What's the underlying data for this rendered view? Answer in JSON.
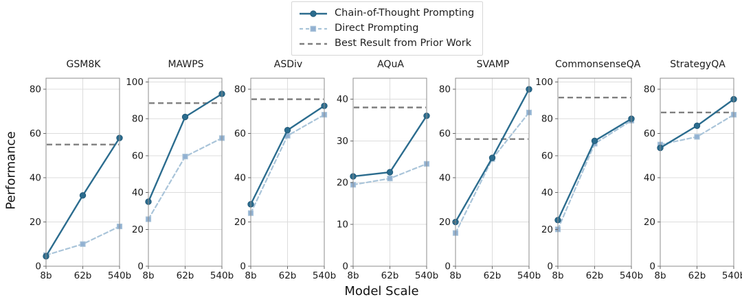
{
  "figure": {
    "xlabel": "Model Scale",
    "ylabel": "Performance"
  },
  "legend": {
    "items": [
      {
        "key": "cot",
        "label": "Chain-of-Thought Prompting"
      },
      {
        "key": "direct",
        "label": "Direct Prompting"
      },
      {
        "key": "prior",
        "label": "Best Result from Prior Work"
      }
    ]
  },
  "colors": {
    "cot": "#2b6c8e",
    "cot_marker_edge": "#235a79",
    "direct": "#a9c4d9",
    "direct_marker": "#8fafd1",
    "prior": "#7f7f7f",
    "grid": "#dcdcdc",
    "spine": "#8c8c8c",
    "tick": "#666666",
    "text": "#1a1a1a"
  },
  "chart_data": [
    {
      "type": "line",
      "title": "GSM8K",
      "categories": [
        "8b",
        "62b",
        "540b"
      ],
      "yticks": [
        0,
        20,
        40,
        60,
        80
      ],
      "ylim": [
        0,
        85
      ],
      "series": [
        {
          "name": "Chain-of-Thought Prompting",
          "values": [
            4.5,
            32,
            58
          ]
        },
        {
          "name": "Direct Prompting",
          "values": [
            5,
            10,
            18
          ]
        }
      ],
      "prior_work": 55
    },
    {
      "type": "line",
      "title": "MAWPS",
      "categories": [
        "8b",
        "62b",
        "540b"
      ],
      "yticks": [
        0,
        20,
        40,
        60,
        80,
        100
      ],
      "ylim": [
        0,
        102
      ],
      "series": [
        {
          "name": "Chain-of-Thought Prompting",
          "values": [
            35,
            81,
            93.5
          ]
        },
        {
          "name": "Direct Prompting",
          "values": [
            25.5,
            59.5,
            69.5
          ]
        }
      ],
      "prior_work": 88.5
    },
    {
      "type": "line",
      "title": "ASDiv",
      "categories": [
        "8b",
        "62b",
        "540b"
      ],
      "yticks": [
        0,
        20,
        40,
        60,
        80
      ],
      "ylim": [
        0,
        85
      ],
      "series": [
        {
          "name": "Chain-of-Thought Prompting",
          "values": [
            28,
            61.5,
            72.5
          ]
        },
        {
          "name": "Direct Prompting",
          "values": [
            24,
            59,
            68.5
          ]
        }
      ],
      "prior_work": 75.5
    },
    {
      "type": "line",
      "title": "AQuA",
      "categories": [
        "8b",
        "62b",
        "540b"
      ],
      "yticks": [
        0,
        10,
        20,
        30,
        40
      ],
      "ylim": [
        0,
        45
      ],
      "series": [
        {
          "name": "Chain-of-Thought Prompting",
          "values": [
            21.5,
            22.5,
            36
          ]
        },
        {
          "name": "Direct Prompting",
          "values": [
            19.5,
            21,
            24.5
          ]
        }
      ],
      "prior_work": 38
    },
    {
      "type": "line",
      "title": "SVAMP",
      "categories": [
        "8b",
        "62b",
        "540b"
      ],
      "yticks": [
        0,
        20,
        40,
        60,
        80
      ],
      "ylim": [
        0,
        85
      ],
      "series": [
        {
          "name": "Chain-of-Thought Prompting",
          "values": [
            20,
            49,
            80
          ]
        },
        {
          "name": "Direct Prompting",
          "values": [
            15,
            48.5,
            69.5
          ]
        }
      ],
      "prior_work": 57.5
    },
    {
      "type": "line",
      "title": "CommonsenseQA",
      "categories": [
        "8b",
        "62b",
        "540b"
      ],
      "yticks": [
        0,
        20,
        40,
        60,
        80,
        100
      ],
      "ylim": [
        0,
        102
      ],
      "series": [
        {
          "name": "Chain-of-Thought Prompting",
          "values": [
            25,
            68,
            80
          ]
        },
        {
          "name": "Direct Prompting",
          "values": [
            20,
            66.5,
            79
          ]
        }
      ],
      "prior_work": 91.5
    },
    {
      "type": "line",
      "title": "StrategyQA",
      "categories": [
        "8b",
        "62b",
        "540b"
      ],
      "yticks": [
        0,
        20,
        40,
        60,
        80
      ],
      "ylim": [
        0,
        85
      ],
      "series": [
        {
          "name": "Chain-of-Thought Prompting",
          "values": [
            53.5,
            63.5,
            75.5
          ]
        },
        {
          "name": "Direct Prompting",
          "values": [
            55,
            58.5,
            68.5
          ]
        }
      ],
      "prior_work": 69.5
    }
  ]
}
